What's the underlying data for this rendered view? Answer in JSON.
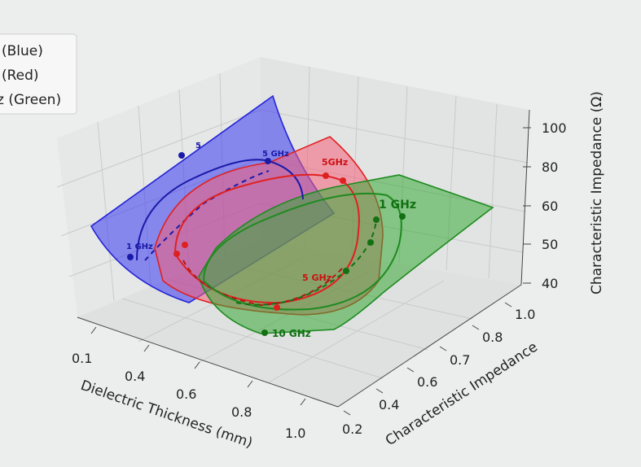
{
  "chart_data": {
    "type": "3d-surface",
    "title": "",
    "xlabel": "Dielectric Thickness (mm)",
    "ylabel": "Characteristic Impedance",
    "zlabel": "Characteristic Impedance (Ω)",
    "x_ticks": [
      "0.1",
      "0.4",
      "0.6",
      "0.8",
      "1.0"
    ],
    "y_ticks": [
      "0.2",
      "0.4",
      "0.6",
      "0.7",
      "0.8",
      "1.0"
    ],
    "z_ticks": [
      "40",
      "50",
      "60",
      "80",
      "100"
    ],
    "legend": {
      "placement": "top-left",
      "entries": [
        {
          "label": "(Blue)",
          "color": "#2323d6"
        },
        {
          "label": "(Red)",
          "color": "#e02020"
        },
        {
          "label": "z (Green)",
          "color": "#1f8a1f"
        }
      ]
    },
    "annotations": [
      {
        "text": "5",
        "color": "#1a1aa8"
      },
      {
        "text": "5 GHz",
        "color": "#1a1aa8"
      },
      {
        "text": "1 GHz",
        "color": "#1a1aa8"
      },
      {
        "text": "5GHz",
        "color": "#cc1010"
      },
      {
        "text": "5 GHz",
        "color": "#cc1010"
      },
      {
        "text": "1 GHz",
        "color": "#137013"
      },
      {
        "text": "10 GHz",
        "color": "#137013"
      }
    ],
    "series": [
      {
        "color": "#2323d6",
        "fill": "rgba(60,60,240,0.55)"
      },
      {
        "color": "#e02020",
        "fill": "rgba(245,90,110,0.55)"
      },
      {
        "color": "#1f8a1f",
        "fill": "rgba(60,170,60,0.55)"
      }
    ]
  }
}
